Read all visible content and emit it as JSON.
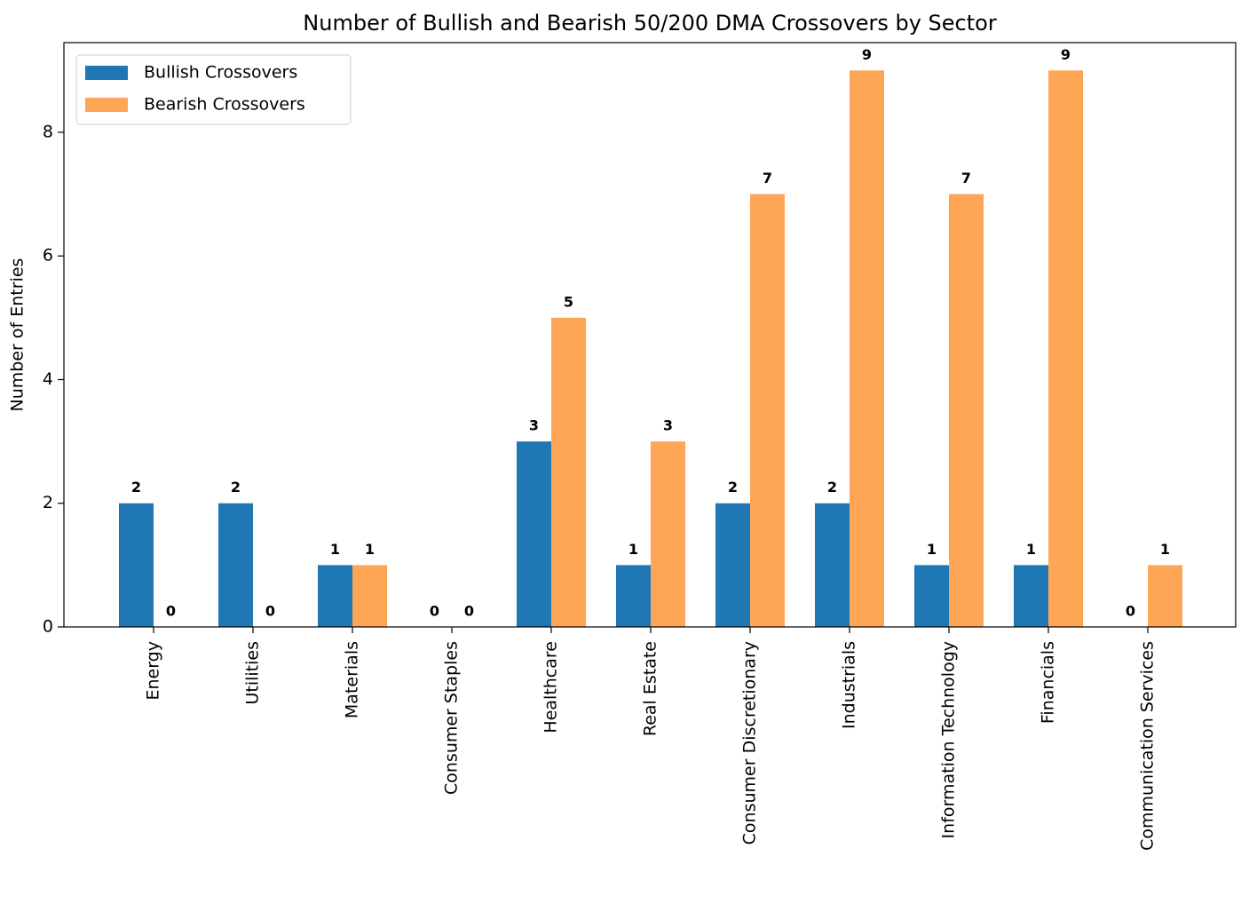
{
  "chart_data": {
    "type": "bar",
    "title": "Number of Bullish and Bearish 50/200 DMA Crossovers by Sector",
    "y_label": "Number of Entries",
    "categories": [
      "Energy",
      "Utilities",
      "Materials",
      "Consumer Staples",
      "Healthcare",
      "Real Estate",
      "Consumer Discretionary",
      "Industrials",
      "Information Technology",
      "Financials",
      "Communication Services"
    ],
    "series": [
      {
        "name": "Bullish Crossovers",
        "color": "#1f77b4",
        "values": [
          2,
          2,
          1,
          0,
          3,
          1,
          2,
          2,
          1,
          1,
          0
        ]
      },
      {
        "name": "Bearish Crossovers",
        "color": "#ffa556",
        "values": [
          0,
          0,
          1,
          0,
          5,
          3,
          7,
          9,
          7,
          9,
          1
        ]
      }
    ],
    "ylim": [
      0,
      9.45
    ],
    "yticks": [
      0,
      2,
      4,
      6,
      8
    ],
    "legend": "upper left",
    "grid": false
  }
}
